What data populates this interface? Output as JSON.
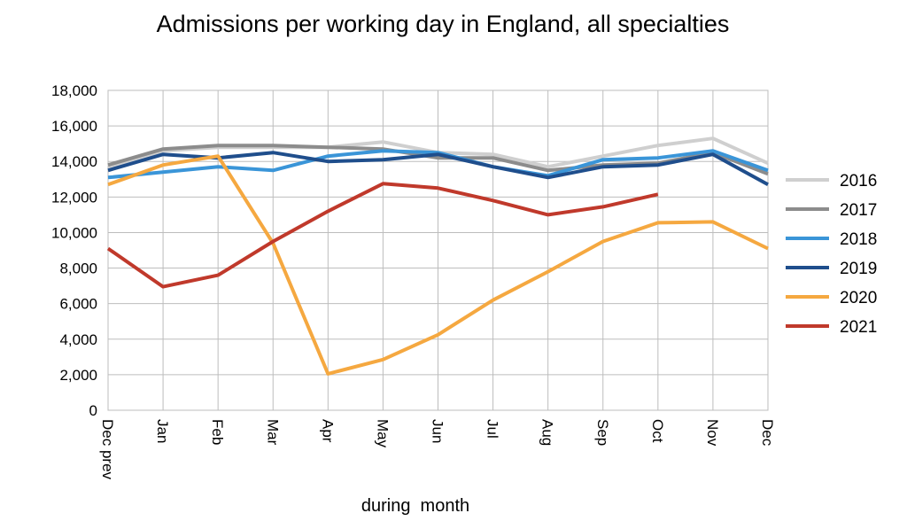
{
  "chart_data": {
    "type": "line",
    "title": "Admissions per working day in England, all specialties",
    "xlabel": "during  month",
    "ylabel": "",
    "ylim": [
      0,
      18000
    ],
    "yticks": [
      0,
      2000,
      4000,
      6000,
      8000,
      10000,
      12000,
      14000,
      16000,
      18000
    ],
    "ytick_labels": [
      "0",
      "2,000",
      "4,000",
      "6,000",
      "8,000",
      "10,000",
      "12,000",
      "14,000",
      "16,000",
      "18,000"
    ],
    "categories": [
      "Dec prev",
      "Jan",
      "Feb",
      "Mar",
      "Apr",
      "May",
      "Jun",
      "Jul",
      "Aug",
      "Sep",
      "Oct",
      "Nov",
      "Dec"
    ],
    "grid": true,
    "legend_position": "right",
    "series": [
      {
        "name": "2016",
        "color": "#cfcfcf",
        "values": [
          13700,
          14600,
          14800,
          14800,
          14800,
          15100,
          14500,
          14400,
          13700,
          14300,
          14900,
          15300,
          13900
        ]
      },
      {
        "name": "2017",
        "color": "#8c8c8c",
        "values": [
          13800,
          14700,
          14900,
          14900,
          14800,
          14700,
          14200,
          14200,
          13500,
          13800,
          13900,
          14500,
          13300
        ]
      },
      {
        "name": "2018",
        "color": "#3a95d8",
        "values": [
          13100,
          13400,
          13700,
          13500,
          14300,
          14600,
          14500,
          13700,
          13200,
          14100,
          14200,
          14600,
          13500
        ]
      },
      {
        "name": "2019",
        "color": "#1f4e8c",
        "values": [
          13500,
          14400,
          14200,
          14500,
          14000,
          14100,
          14400,
          13700,
          13100,
          13700,
          13800,
          14400,
          12700
        ]
      },
      {
        "name": "2020",
        "color": "#f5a840",
        "values": [
          12700,
          13800,
          14300,
          9400,
          2050,
          2850,
          4250,
          6200,
          7800,
          9500,
          10550,
          10600,
          9100
        ]
      },
      {
        "name": "2021",
        "color": "#c0392b",
        "values": [
          9100,
          6950,
          7600,
          9500,
          11200,
          12750,
          12500,
          11800,
          11000,
          11450,
          12150,
          null,
          null
        ]
      }
    ]
  }
}
